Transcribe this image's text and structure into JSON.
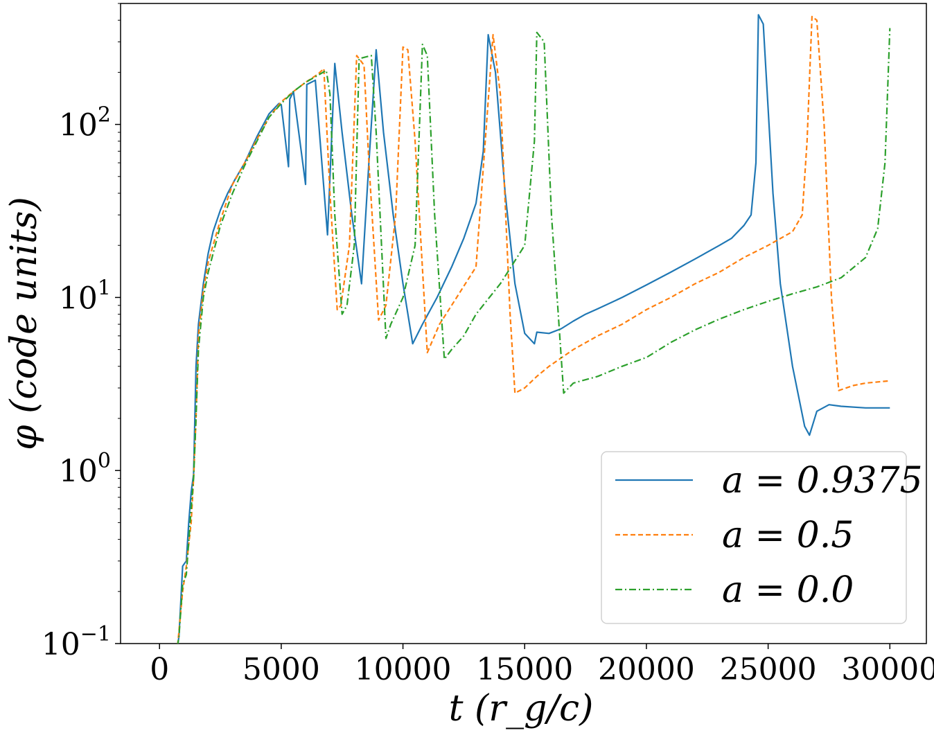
{
  "chart_data": {
    "type": "line",
    "title": "",
    "xlabel": "t (r_g/c)",
    "ylabel": "φ (code units)",
    "xlim": [
      -1600,
      31500
    ],
    "ylim": [
      0.1,
      500
    ],
    "yscale": "log",
    "xticks": [
      0,
      5000,
      10000,
      15000,
      20000,
      25000,
      30000
    ],
    "xtick_labels": [
      "0",
      "5000",
      "10000",
      "15000",
      "20000",
      "25000",
      "30000"
    ],
    "ytick_labels": [
      {
        "base": "10",
        "exp": "−1",
        "value": 0.1
      },
      {
        "base": "10",
        "exp": "0",
        "value": 1
      },
      {
        "base": "10",
        "exp": "1",
        "value": 10
      },
      {
        "base": "10",
        "exp": "2",
        "value": 100
      }
    ],
    "grid": false,
    "legend_position": "lower-right",
    "series": [
      {
        "name": "a = 0.9375",
        "color": "#1f77b4",
        "dash": "solid",
        "points": [
          [
            650,
            0.08
          ],
          [
            800,
            0.11
          ],
          [
            950,
            0.28
          ],
          [
            1100,
            0.3
          ],
          [
            1200,
            0.5
          ],
          [
            1300,
            0.75
          ],
          [
            1400,
            0.95
          ],
          [
            1500,
            4
          ],
          [
            1600,
            7
          ],
          [
            1800,
            12
          ],
          [
            2000,
            18
          ],
          [
            2200,
            24
          ],
          [
            2500,
            32
          ],
          [
            2800,
            40
          ],
          [
            3100,
            48
          ],
          [
            3500,
            60
          ],
          [
            4000,
            85
          ],
          [
            4500,
            115
          ],
          [
            4900,
            132
          ],
          [
            5000,
            130
          ],
          [
            5300,
            57
          ],
          [
            5350,
            140
          ],
          [
            5500,
            155
          ],
          [
            6000,
            45
          ],
          [
            6050,
            170
          ],
          [
            6400,
            180
          ],
          [
            6900,
            23
          ],
          [
            7200,
            225
          ],
          [
            7500,
            90
          ],
          [
            7900,
            30
          ],
          [
            8300,
            12
          ],
          [
            8600,
            60
          ],
          [
            8900,
            270
          ],
          [
            9200,
            90
          ],
          [
            9600,
            30
          ],
          [
            10000,
            12
          ],
          [
            10400,
            5.4
          ],
          [
            10800,
            7
          ],
          [
            11400,
            10
          ],
          [
            12000,
            15
          ],
          [
            12500,
            22
          ],
          [
            13000,
            35
          ],
          [
            13300,
            70
          ],
          [
            13500,
            330
          ],
          [
            13800,
            200
          ],
          [
            14200,
            40
          ],
          [
            14600,
            12
          ],
          [
            15000,
            6.2
          ],
          [
            15400,
            5.4
          ],
          [
            15500,
            6.3
          ],
          [
            16000,
            6.2
          ],
          [
            16500,
            6.6
          ],
          [
            17000,
            7.3
          ],
          [
            17500,
            8
          ],
          [
            18000,
            8.6
          ],
          [
            19000,
            10
          ],
          [
            20000,
            11.8
          ],
          [
            21000,
            14
          ],
          [
            22000,
            16.7
          ],
          [
            23000,
            20
          ],
          [
            23500,
            22
          ],
          [
            24000,
            26
          ],
          [
            24300,
            30
          ],
          [
            24500,
            60
          ],
          [
            24600,
            430
          ],
          [
            24800,
            380
          ],
          [
            25200,
            40
          ],
          [
            25500,
            12
          ],
          [
            26000,
            4
          ],
          [
            26500,
            1.8
          ],
          [
            26700,
            1.6
          ],
          [
            27000,
            2.2
          ],
          [
            27500,
            2.4
          ],
          [
            28000,
            2.35
          ],
          [
            29000,
            2.3
          ],
          [
            30000,
            2.3
          ]
        ]
      },
      {
        "name": "a = 0.5",
        "color": "#ff7f0e",
        "dash": "7,4",
        "points": [
          [
            600,
            0.08
          ],
          [
            750,
            0.1
          ],
          [
            950,
            0.2
          ],
          [
            1100,
            0.28
          ],
          [
            1300,
            0.5
          ],
          [
            1400,
            0.9
          ],
          [
            1500,
            2
          ],
          [
            1600,
            6
          ],
          [
            1800,
            11
          ],
          [
            2000,
            16
          ],
          [
            2500,
            28
          ],
          [
            3000,
            45
          ],
          [
            3500,
            60
          ],
          [
            4000,
            82
          ],
          [
            4500,
            110
          ],
          [
            5000,
            135
          ],
          [
            5500,
            155
          ],
          [
            6000,
            175
          ],
          [
            6500,
            195
          ],
          [
            6750,
            210
          ],
          [
            7000,
            40
          ],
          [
            7300,
            8.5
          ],
          [
            7450,
            9
          ],
          [
            7800,
            20
          ],
          [
            8100,
            250
          ],
          [
            8400,
            220
          ],
          [
            8600,
            60
          ],
          [
            9000,
            7.4
          ],
          [
            9300,
            9
          ],
          [
            9700,
            30
          ],
          [
            10000,
            280
          ],
          [
            10200,
            270
          ],
          [
            10500,
            80
          ],
          [
            11000,
            4.8
          ],
          [
            11500,
            7
          ],
          [
            12000,
            9
          ],
          [
            13000,
            15
          ],
          [
            13700,
            330
          ],
          [
            14000,
            150
          ],
          [
            14400,
            8
          ],
          [
            14600,
            2.8
          ],
          [
            15000,
            3
          ],
          [
            15500,
            3.5
          ],
          [
            16000,
            4
          ],
          [
            17000,
            5
          ],
          [
            18000,
            6
          ],
          [
            19000,
            7
          ],
          [
            20000,
            8.5
          ],
          [
            21000,
            10
          ],
          [
            22000,
            12
          ],
          [
            23000,
            14
          ],
          [
            24000,
            17
          ],
          [
            25000,
            20
          ],
          [
            26000,
            24
          ],
          [
            26400,
            30
          ],
          [
            26600,
            80
          ],
          [
            26800,
            420
          ],
          [
            27000,
            400
          ],
          [
            27300,
            100
          ],
          [
            27600,
            10
          ],
          [
            27900,
            2.9
          ],
          [
            28500,
            3.1
          ],
          [
            29000,
            3.2
          ],
          [
            30000,
            3.3
          ]
        ]
      },
      {
        "name": "a = 0.0",
        "color": "#2ca02c",
        "dash": "10,4,2,4",
        "points": [
          [
            650,
            0.08
          ],
          [
            800,
            0.11
          ],
          [
            950,
            0.22
          ],
          [
            1100,
            0.25
          ],
          [
            1300,
            0.6
          ],
          [
            1400,
            0.9
          ],
          [
            1500,
            2
          ],
          [
            1600,
            5
          ],
          [
            1800,
            10
          ],
          [
            2000,
            14
          ],
          [
            2500,
            26
          ],
          [
            3000,
            40
          ],
          [
            3500,
            58
          ],
          [
            4000,
            80
          ],
          [
            4500,
            110
          ],
          [
            5000,
            132
          ],
          [
            5500,
            155
          ],
          [
            6000,
            175
          ],
          [
            6500,
            192
          ],
          [
            6850,
            205
          ],
          [
            7000,
            150
          ],
          [
            7200,
            30
          ],
          [
            7500,
            8
          ],
          [
            7700,
            9
          ],
          [
            8000,
            20
          ],
          [
            8200,
            240
          ],
          [
            8700,
            250
          ],
          [
            8900,
            90
          ],
          [
            9300,
            5.8
          ],
          [
            9500,
            7
          ],
          [
            10000,
            10
          ],
          [
            10500,
            20
          ],
          [
            10800,
            290
          ],
          [
            11000,
            250
          ],
          [
            11300,
            30
          ],
          [
            11700,
            4.4
          ],
          [
            12000,
            5
          ],
          [
            12500,
            6
          ],
          [
            13000,
            8
          ],
          [
            14000,
            12
          ],
          [
            15000,
            20
          ],
          [
            15400,
            80
          ],
          [
            15500,
            340
          ],
          [
            15800,
            300
          ],
          [
            16100,
            30
          ],
          [
            16600,
            2.8
          ],
          [
            17000,
            3.2
          ],
          [
            18000,
            3.5
          ],
          [
            19000,
            4
          ],
          [
            20000,
            4.5
          ],
          [
            21000,
            5.5
          ],
          [
            22000,
            6.5
          ],
          [
            23000,
            7.5
          ],
          [
            24000,
            8.5
          ],
          [
            25000,
            9.5
          ],
          [
            26000,
            10.5
          ],
          [
            27000,
            11.5
          ],
          [
            28000,
            13
          ],
          [
            29000,
            17
          ],
          [
            29500,
            25
          ],
          [
            29800,
            60
          ],
          [
            30000,
            360
          ]
        ]
      }
    ]
  }
}
